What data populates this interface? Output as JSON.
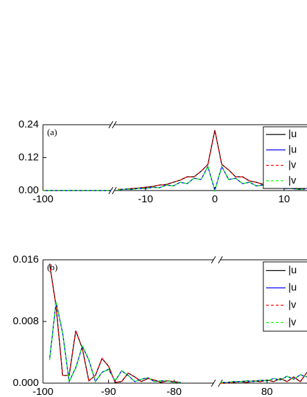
{
  "chart_data": [
    {
      "type": "line",
      "annotation": "(a)",
      "xlim": [
        -100,
        13.3
      ],
      "xbreak": [
        -90,
        -14.5
      ],
      "xticks": [
        -100,
        -10,
        0,
        10
      ],
      "ylim": [
        0,
        0.24
      ],
      "yticks": [
        {
          "value": 0,
          "label": "0.00"
        },
        {
          "value": 0.12,
          "label": "0.12"
        },
        {
          "value": 0.24,
          "label": "0.24"
        }
      ],
      "x": [
        -100,
        -90,
        -14,
        -13,
        -12,
        -11,
        -10,
        -9,
        -8,
        -7,
        -6,
        -5,
        -4,
        -3,
        -2,
        -1,
        0,
        1,
        2,
        3,
        4,
        5,
        6,
        7,
        8,
        9,
        10,
        11,
        12,
        13
      ],
      "series": [
        {
          "name": "|u",
          "color": "#000000",
          "linestyle": "solid",
          "values": [
            0,
            0,
            0.004,
            0.005,
            0.007,
            0.009,
            0.012,
            0.015,
            0.02,
            0.022,
            0.03,
            0.038,
            0.05,
            0.05,
            0.07,
            0.095,
            0.22,
            0.095,
            0.075,
            0.05,
            0.05,
            0.035,
            0.03,
            0.022,
            0.02,
            0.015,
            0.012,
            0.009,
            0.007,
            0.005
          ]
        },
        {
          "name": "|u",
          "color": "#0000ff",
          "linestyle": "solid",
          "values": [
            0,
            0,
            0.002,
            0.005,
            0.004,
            0.008,
            0.007,
            0.012,
            0.01,
            0.02,
            0.017,
            0.03,
            0.025,
            0.045,
            0.04,
            0.088,
            0,
            0.088,
            0.04,
            0.045,
            0.025,
            0.03,
            0.017,
            0.02,
            0.01,
            0.012,
            0.007,
            0.008,
            0.004,
            0.005
          ]
        },
        {
          "name": "|v",
          "color": "#ff0000",
          "linestyle": "dashed",
          "values": [
            0,
            0,
            0.004,
            0.005,
            0.007,
            0.009,
            0.012,
            0.015,
            0.02,
            0.022,
            0.03,
            0.038,
            0.05,
            0.05,
            0.07,
            0.095,
            0.22,
            0.095,
            0.075,
            0.05,
            0.05,
            0.035,
            0.03,
            0.022,
            0.02,
            0.015,
            0.012,
            0.009,
            0.007,
            0.005
          ]
        },
        {
          "name": "|v",
          "color": "#00ff00",
          "linestyle": "dashed",
          "values": [
            0,
            0,
            0.002,
            0.005,
            0.004,
            0.008,
            0.007,
            0.012,
            0.01,
            0.02,
            0.017,
            0.03,
            0.025,
            0.045,
            0.04,
            0.088,
            0,
            0.088,
            0.04,
            0.045,
            0.025,
            0.03,
            0.017,
            0.02,
            0.01,
            0.012,
            0.007,
            0.008,
            0.004,
            0.005
          ]
        }
      ]
    },
    {
      "type": "line",
      "annotation": "(b)",
      "xlim": [
        -100,
        86
      ],
      "xbreak": [
        -74,
        73
      ],
      "xticks": [
        -100,
        -90,
        -80,
        80
      ],
      "ylim": [
        0,
        0.016
      ],
      "yticks": [
        {
          "value": 0,
          "label": "0.000"
        },
        {
          "value": 0.008,
          "label": "0.008"
        },
        {
          "value": 0.016,
          "label": "0.016"
        }
      ],
      "x": [
        -99,
        -98,
        -97,
        -96,
        -95,
        -94,
        -93,
        -92,
        -91,
        -90,
        -89,
        -88,
        -87,
        -86,
        -85,
        -84,
        -83,
        -82,
        -81,
        -80,
        -79,
        73,
        74,
        75,
        76,
        77,
        78,
        79,
        80,
        81,
        82,
        83,
        84,
        85,
        86
      ],
      "series": [
        {
          "name": "|u",
          "color": "#000000",
          "linestyle": "solid",
          "values": [
            0.0155,
            0.01,
            0.001,
            0.001,
            0.0068,
            0.0045,
            0.0003,
            0.001,
            0.0032,
            0.0022,
            0.0001,
            0.0002,
            0.0013,
            0.0008,
            0.0002,
            0.0006,
            0.0004,
            0.0001,
            0.0003,
            0.0002,
            0.0001,
            0,
            0,
            0.0001,
            0.0002,
            0.0001,
            0.0003,
            0.0002,
            0.0004,
            0.0002,
            0.0006,
            0.0002,
            0.0008,
            0.0002,
            0.0014
          ]
        },
        {
          "name": "|u",
          "color": "#0000ff",
          "linestyle": "solid",
          "values": [
            0.003,
            0.0105,
            0.0065,
            0.0002,
            0.002,
            0.0048,
            0.003,
            0.0002,
            0.0014,
            0.0018,
            0.0003,
            0.0016,
            0.001,
            0.0002,
            0.0005,
            0.0007,
            0.0002,
            0.0003,
            0.0003,
            0.0001,
            0.0001,
            0.0001,
            0.0001,
            0.0002,
            0.0002,
            0.0003,
            0.0002,
            0.0004,
            0.0003,
            0.0006,
            0.0004,
            0.0009,
            0.0005,
            0.0011,
            0.0008
          ]
        },
        {
          "name": "|v",
          "color": "#ff0000",
          "linestyle": "dashed",
          "values": [
            0.0155,
            0.01,
            0.001,
            0.001,
            0.0068,
            0.0045,
            0.0003,
            0.001,
            0.0032,
            0.0022,
            0.0001,
            0.0002,
            0.0013,
            0.0008,
            0.0002,
            0.0006,
            0.0004,
            0.0001,
            0.0003,
            0.0002,
            0.0001,
            0,
            0,
            0.0001,
            0.0002,
            0.0001,
            0.0003,
            0.0002,
            0.0004,
            0.0002,
            0.0006,
            0.0002,
            0.0008,
            0.0002,
            0.0014
          ]
        },
        {
          "name": "|v",
          "color": "#00ff00",
          "linestyle": "dashed",
          "values": [
            0.003,
            0.0105,
            0.0065,
            0.0002,
            0.002,
            0.0048,
            0.003,
            0.0002,
            0.0014,
            0.0018,
            0.0003,
            0.0016,
            0.001,
            0.0002,
            0.0005,
            0.0007,
            0.0002,
            0.0003,
            0.0003,
            0.0001,
            0.0001,
            0.0001,
            0.0001,
            0.0002,
            0.0002,
            0.0003,
            0.0002,
            0.0004,
            0.0003,
            0.0006,
            0.0004,
            0.0009,
            0.0005,
            0.0011,
            0.0008
          ]
        }
      ]
    }
  ]
}
